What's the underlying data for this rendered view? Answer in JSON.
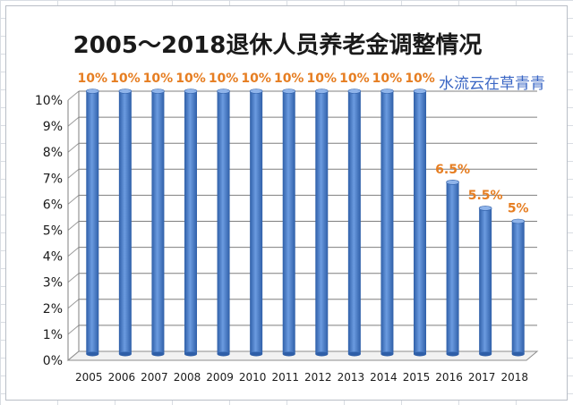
{
  "chart_data": {
    "type": "bar",
    "title": "2005～2018退休人员养老金调整情况",
    "categories": [
      "2005",
      "2006",
      "2007",
      "2008",
      "2009",
      "2010",
      "2011",
      "2012",
      "2013",
      "2014",
      "2015",
      "2016",
      "2017",
      "2018"
    ],
    "values": [
      10,
      10,
      10,
      10,
      10,
      10,
      10,
      10,
      10,
      10,
      10,
      6.5,
      5.5,
      5
    ],
    "data_labels": [
      "10%",
      "10%",
      "10%",
      "10%",
      "10%",
      "10%",
      "10%",
      "10%",
      "10%",
      "10%",
      "10%",
      "6.5%",
      "5.5%",
      "5%"
    ],
    "y_ticks": [
      "0%",
      "1%",
      "2%",
      "3%",
      "4%",
      "5%",
      "6%",
      "7%",
      "8%",
      "9%",
      "10%"
    ],
    "ylim": [
      0,
      10
    ],
    "xlabel": "",
    "ylabel": "",
    "grid": true,
    "legend": "none",
    "colors": {
      "bar": "#4a7fd0",
      "bar_dark": "#2f5fa8",
      "label": "#e67e22"
    }
  },
  "watermark": "水流云在草青青"
}
